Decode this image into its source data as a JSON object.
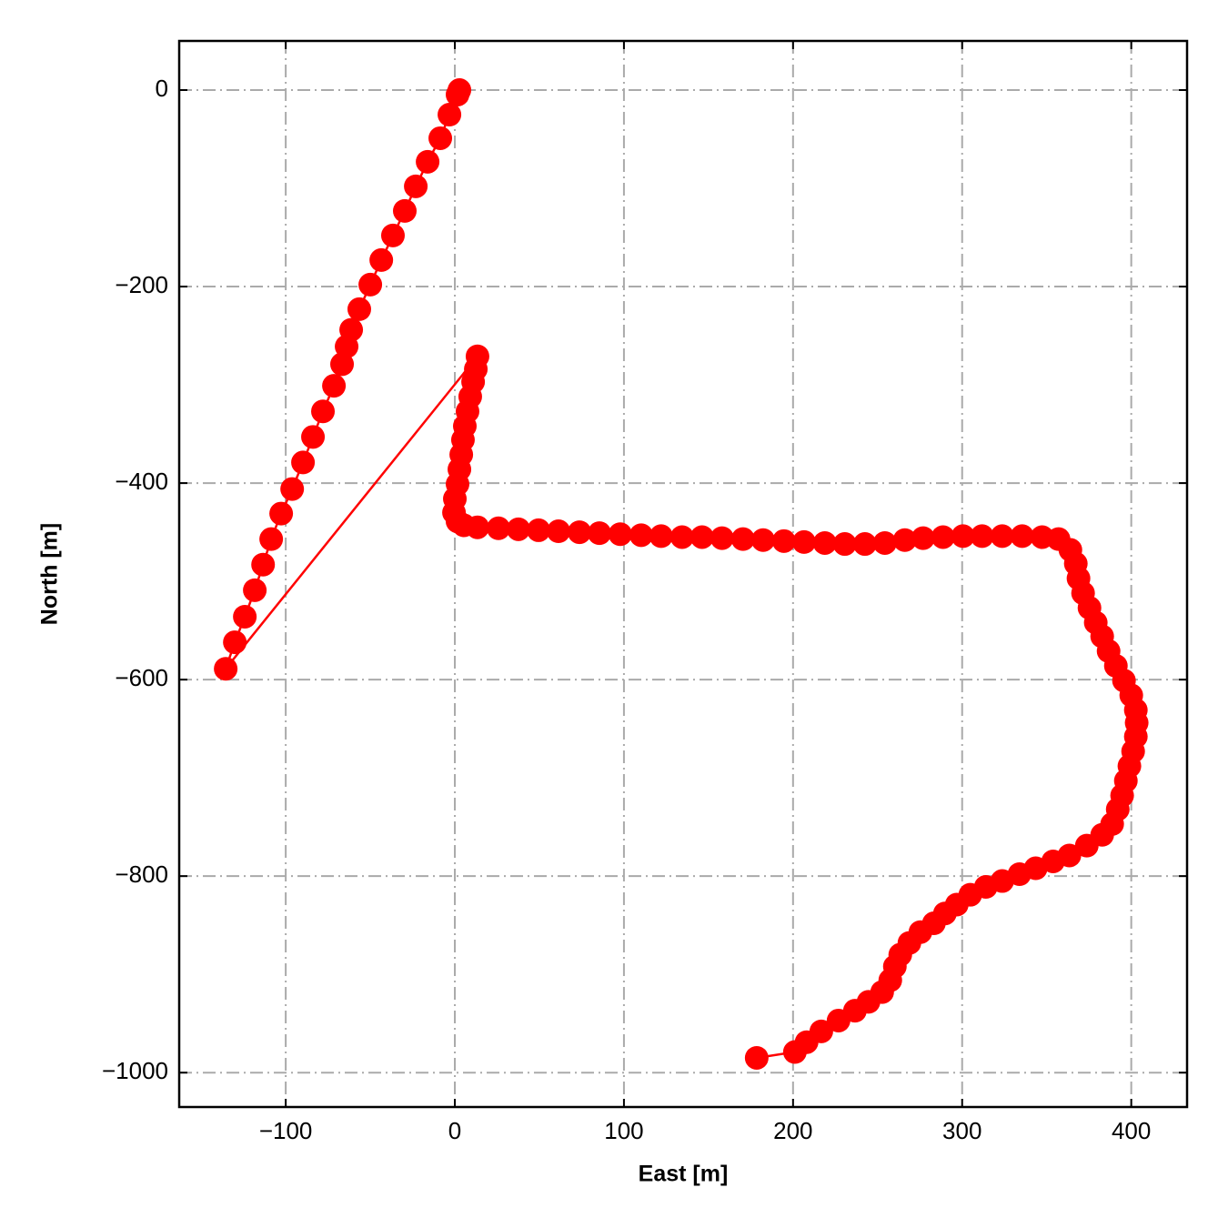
{
  "chart_data": {
    "type": "line",
    "x_label": "East [m]",
    "y_label": "North [m]",
    "x": [
      2.7,
      1.6,
      -3.2,
      -8.6,
      -16.1,
      -23.1,
      -29.6,
      -36.6,
      -43.5,
      -50,
      -56.5,
      -61.3,
      -64,
      -66.7,
      -71.5,
      -78,
      -83.9,
      -89.8,
      -96.2,
      -102.7,
      -108.6,
      -113.4,
      -118.3,
      -124.2,
      -130.1,
      -135.5,
      13.4,
      12.4,
      10.8,
      9.1,
      7.5,
      5.9,
      4.8,
      3.8,
      2.7,
      1.6,
      0,
      -0.5,
      1.6,
      5.4,
      13.4,
      25.8,
      37.6,
      49.5,
      61.3,
      73.7,
      85.5,
      97.8,
      110.2,
      122,
      134.4,
      146.2,
      158,
      170.4,
      182.3,
      194.6,
      206.5,
      218.8,
      230.6,
      242.5,
      254.3,
      266.1,
      276.9,
      288.7,
      300.5,
      311.8,
      323.7,
      335.5,
      347.3,
      357,
      364,
      367.2,
      368.8,
      371.5,
      375.3,
      379,
      382.8,
      386.6,
      390.9,
      395.7,
      400,
      402.7,
      403.2,
      402.7,
      401.1,
      398.9,
      396.8,
      394.6,
      392,
      388.7,
      382.8,
      373.7,
      363.4,
      353.8,
      343.5,
      333.9,
      323.7,
      314,
      304.8,
      296.8,
      289.8,
      283.3,
      275.3,
      268.8,
      263.4,
      260.2,
      257.5,
      252.7,
      244.6,
      236.6,
      226.9,
      216.7,
      208,
      201.1,
      178.5
    ],
    "series": [
      {
        "color": "#ff0000",
        "values": [
          0,
          -4.6,
          -25,
          -49,
          -73,
          -98,
          -123,
          -148,
          -173,
          -198,
          -223,
          -244,
          -261,
          -279,
          -301,
          -327,
          -353,
          -379,
          -406,
          -431,
          -457,
          -483,
          -509,
          -536,
          -562,
          -589,
          -271,
          -284,
          -297,
          -312,
          -327,
          -342,
          -356,
          -371,
          -386,
          -401,
          -416,
          -430,
          -439,
          -443,
          -445,
          -446,
          -447,
          -448,
          -449,
          -450,
          -451,
          -452,
          -453,
          -454,
          -455,
          -455,
          -456,
          -457,
          -458,
          -459,
          -460,
          -461,
          -462,
          -462,
          -461,
          -458,
          -456,
          -455,
          -454,
          -454,
          -454,
          -454,
          -455,
          -457,
          -468,
          -482,
          -497,
          -512,
          -527,
          -542,
          -556,
          -571,
          -586,
          -601,
          -616,
          -631,
          -644,
          -658,
          -673,
          -688,
          -703,
          -718,
          -732,
          -747,
          -758,
          -769,
          -779,
          -785,
          -792,
          -798,
          -805,
          -811,
          -819,
          -829,
          -838,
          -848,
          -857,
          -868,
          -880,
          -892,
          -906,
          -918,
          -928,
          -937,
          -947,
          -958,
          -969,
          -979,
          -985
        ]
      }
    ],
    "xlim": [
      -163,
      433
    ],
    "ylim": [
      -1035,
      50
    ],
    "xticks": [
      {
        "value": -100,
        "label": "−100"
      },
      0,
      100,
      200,
      300,
      400
    ],
    "yticks": [
      {
        "value": -1000,
        "label": "−1000"
      },
      {
        "value": -800,
        "label": "−800"
      },
      {
        "value": -600,
        "label": "−600"
      },
      {
        "value": -400,
        "label": "−400"
      },
      {
        "value": -200,
        "label": "−200"
      },
      0
    ],
    "grid": true
  }
}
